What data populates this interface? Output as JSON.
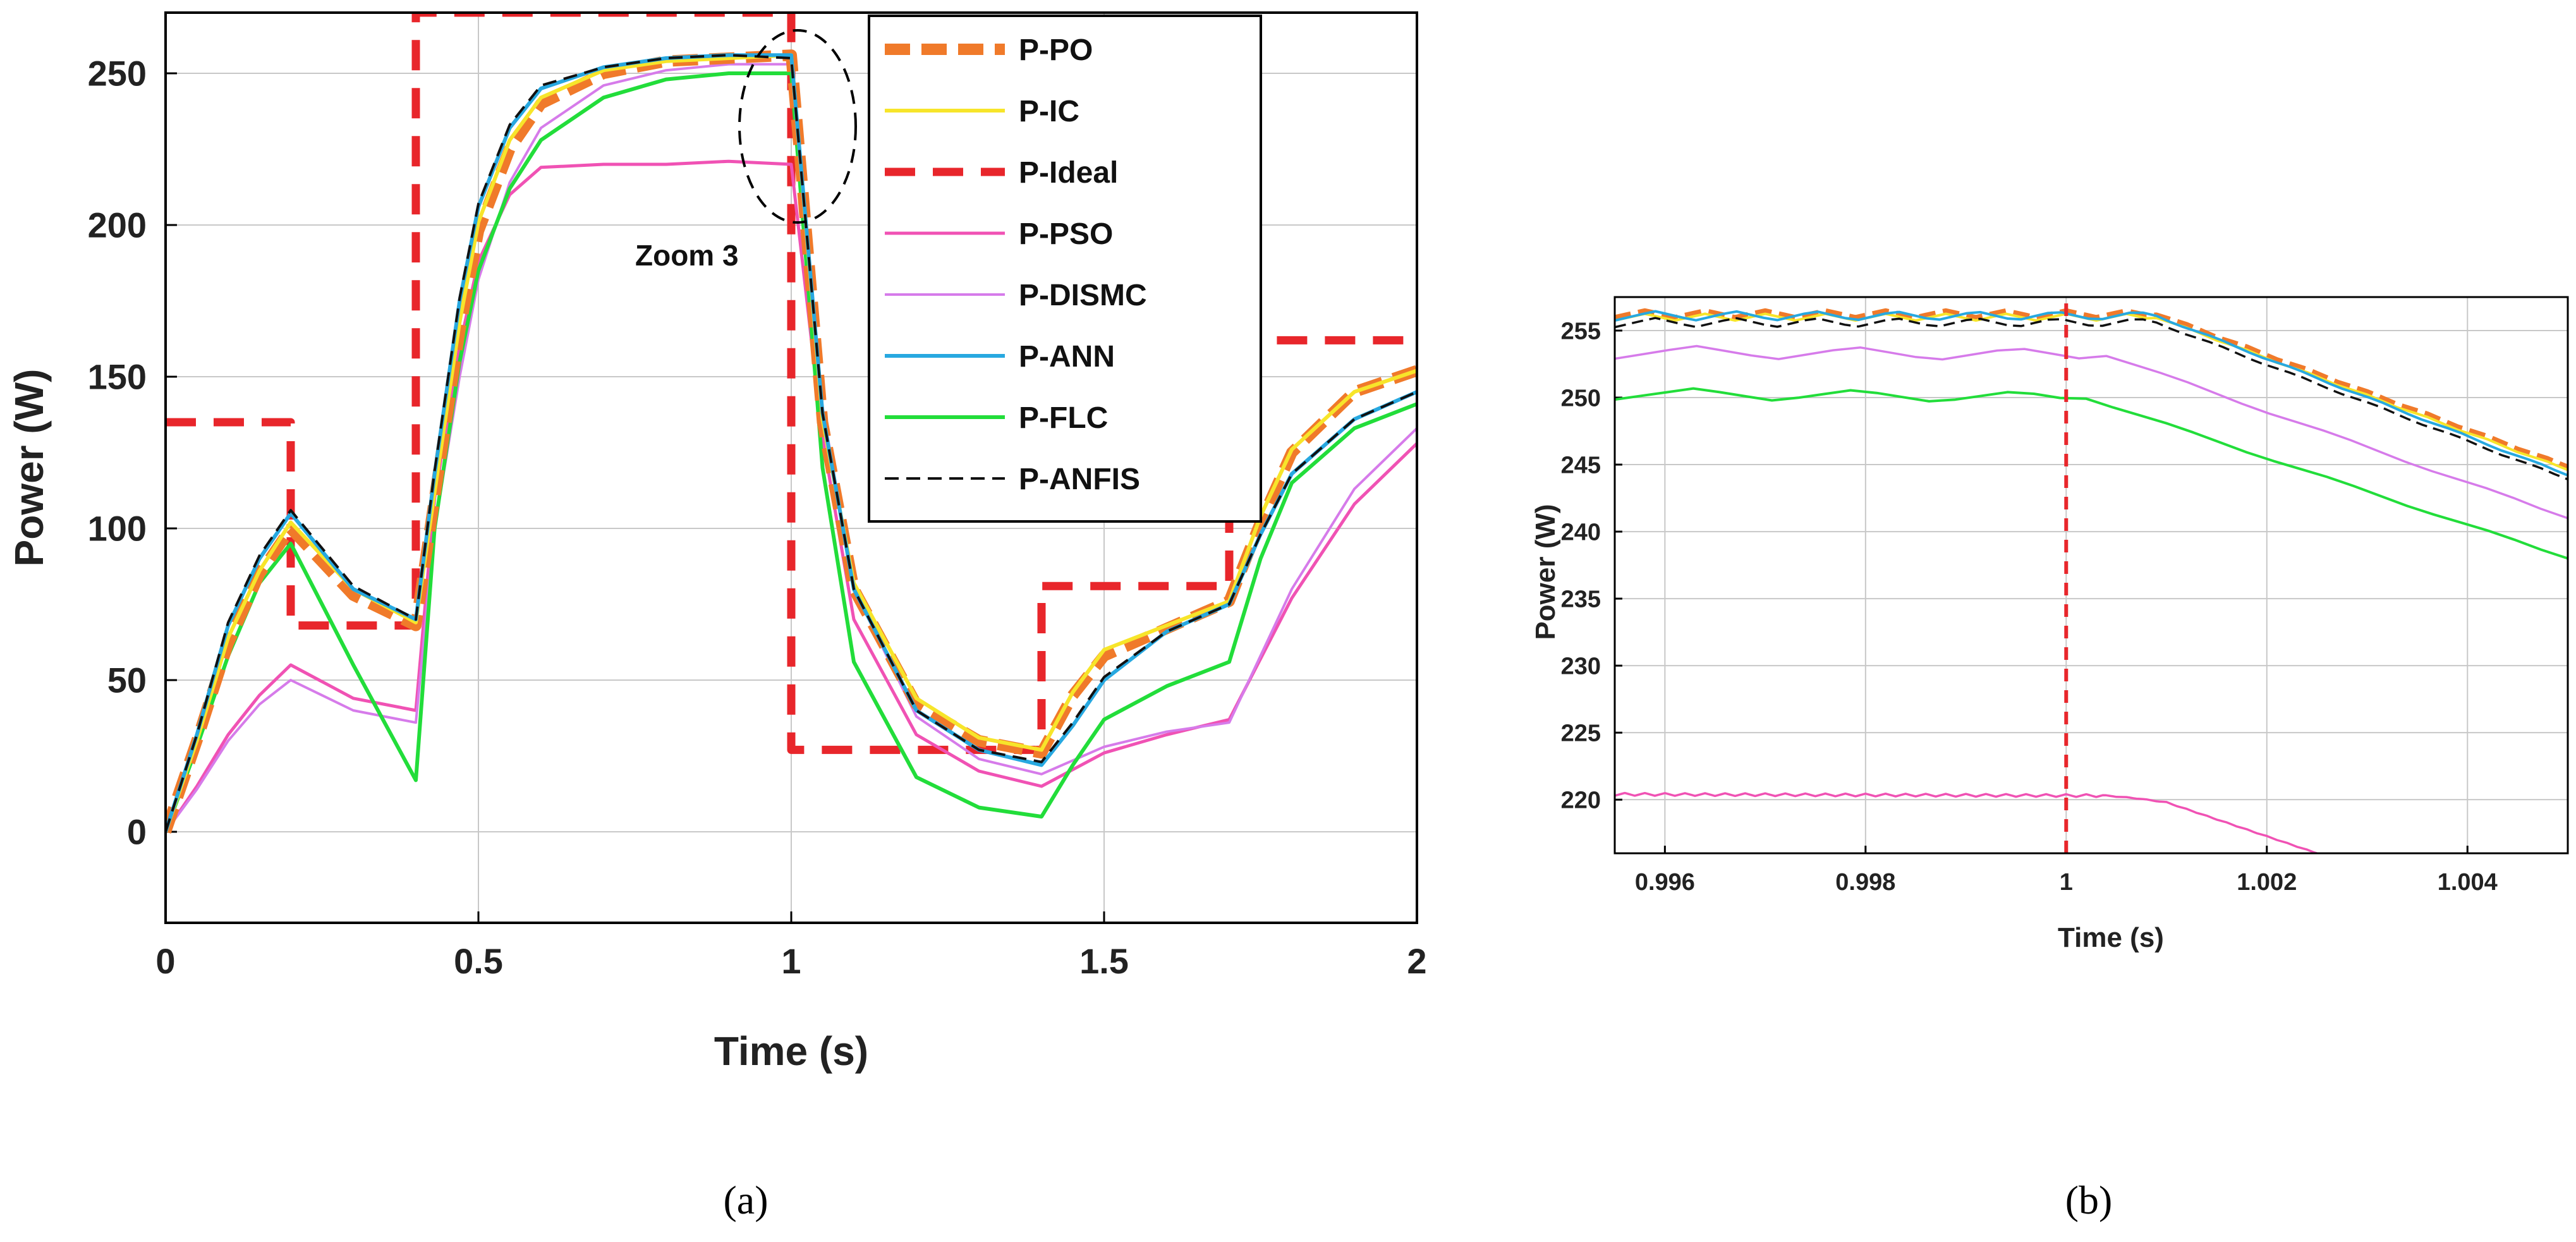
{
  "colors": {
    "P-PO": "#F07A2A",
    "P-IC": "#F7E52A",
    "P-Ideal": "#E8262B",
    "P-PSO": "#F052B4",
    "P-DISMC": "#D67BEA",
    "P-ANN": "#27A8E0",
    "P-FLC": "#22DD3A",
    "P-ANFIS": "#111111"
  },
  "chart_data": [
    {
      "type": "line",
      "panel": "a",
      "panel_label": "(a)",
      "xlabel": "Time (s)",
      "ylabel": "Power (W)",
      "xlim": [
        0,
        2
      ],
      "ylim": [
        -30,
        270
      ],
      "xticks": [
        0,
        0.5,
        1,
        1.5,
        2
      ],
      "xtick_labels": [
        "0",
        "0.5",
        "1",
        "1.5",
        "2"
      ],
      "yticks": [
        0,
        50,
        100,
        150,
        200,
        250
      ],
      "ytick_labels": [
        "0",
        "50",
        "100",
        "150",
        "200",
        "250"
      ],
      "grid": true,
      "legend_position": "top-right",
      "annotation": {
        "text": "Zoom 3",
        "x": 1.0,
        "y": 230
      },
      "series": [
        {
          "name": "P-Ideal",
          "x": [
            0,
            0.2,
            0.2,
            0.4,
            0.4,
            1.0,
            1.0,
            1.4,
            1.4,
            1.7,
            1.7,
            2.0
          ],
          "y": [
            135,
            135,
            68,
            68,
            270,
            270,
            27,
            27,
            81,
            81,
            162,
            162
          ]
        },
        {
          "name": "P-PSO",
          "x": [
            0,
            0.05,
            0.1,
            0.15,
            0.2,
            0.3,
            0.4,
            0.43,
            0.47,
            0.5,
            0.55,
            0.6,
            0.7,
            0.8,
            0.9,
            1.0,
            1.05,
            1.1,
            1.2,
            1.3,
            1.4,
            1.5,
            1.6,
            1.7,
            1.8,
            1.9,
            2.0
          ],
          "y": [
            0,
            15,
            32,
            45,
            55,
            44,
            40,
            110,
            160,
            188,
            210,
            219,
            220,
            220,
            221,
            220,
            130,
            70,
            32,
            20,
            15,
            26,
            32,
            37,
            77,
            108,
            128
          ]
        },
        {
          "name": "P-DISMC",
          "x": [
            0,
            0.05,
            0.1,
            0.15,
            0.2,
            0.3,
            0.4,
            0.43,
            0.47,
            0.5,
            0.55,
            0.6,
            0.7,
            0.8,
            0.9,
            1.0,
            1.05,
            1.1,
            1.2,
            1.3,
            1.4,
            1.5,
            1.6,
            1.7,
            1.8,
            1.9,
            2.0
          ],
          "y": [
            0,
            14,
            30,
            42,
            50,
            40,
            36,
            100,
            150,
            182,
            214,
            232,
            246,
            251,
            253,
            253,
            140,
            80,
            38,
            24,
            19,
            28,
            33,
            36,
            80,
            113,
            133
          ]
        },
        {
          "name": "P-FLC",
          "x": [
            0,
            0.05,
            0.1,
            0.15,
            0.2,
            0.3,
            0.4,
            0.43,
            0.47,
            0.5,
            0.55,
            0.6,
            0.7,
            0.8,
            0.9,
            1.0,
            1.05,
            1.1,
            1.2,
            1.3,
            1.4,
            1.45,
            1.5,
            1.6,
            1.7,
            1.75,
            1.8,
            1.9,
            2.0
          ],
          "y": [
            0,
            28,
            58,
            82,
            95,
            55,
            17,
            100,
            155,
            185,
            212,
            228,
            242,
            248,
            250,
            250,
            120,
            56,
            18,
            8,
            5,
            22,
            37,
            48,
            56,
            90,
            115,
            133,
            141
          ]
        },
        {
          "name": "P-PO",
          "x": [
            0,
            0.05,
            0.1,
            0.15,
            0.2,
            0.3,
            0.4,
            0.43,
            0.47,
            0.5,
            0.55,
            0.6,
            0.7,
            0.8,
            0.9,
            1.0,
            1.05,
            1.1,
            1.2,
            1.3,
            1.4,
            1.45,
            1.5,
            1.6,
            1.7,
            1.75,
            1.8,
            1.9,
            2.0
          ],
          "y": [
            0,
            30,
            62,
            85,
            100,
            78,
            68,
            110,
            165,
            198,
            225,
            240,
            250,
            254,
            255,
            256,
            135,
            80,
            42,
            30,
            26,
            45,
            58,
            67,
            76,
            102,
            125,
            145,
            152
          ]
        },
        {
          "name": "P-IC",
          "x": [
            0,
            0.05,
            0.1,
            0.15,
            0.2,
            0.3,
            0.4,
            0.43,
            0.47,
            0.5,
            0.55,
            0.6,
            0.7,
            0.8,
            0.9,
            1.0,
            1.05,
            1.1,
            1.2,
            1.3,
            1.4,
            1.45,
            1.5,
            1.6,
            1.7,
            1.75,
            1.8,
            1.9,
            2.0
          ],
          "y": [
            0,
            30,
            64,
            86,
            102,
            80,
            69,
            112,
            168,
            201,
            228,
            242,
            251,
            254,
            255,
            256,
            136,
            82,
            44,
            31,
            27,
            46,
            60,
            68,
            76,
            104,
            126,
            145,
            152
          ]
        },
        {
          "name": "P-ANN",
          "x": [
            0,
            0.05,
            0.1,
            0.15,
            0.2,
            0.3,
            0.4,
            0.43,
            0.47,
            0.5,
            0.55,
            0.6,
            0.7,
            0.8,
            0.9,
            1.0,
            1.05,
            1.1,
            1.2,
            1.3,
            1.4,
            1.45,
            1.5,
            1.6,
            1.7,
            1.75,
            1.8,
            1.9,
            2.0
          ],
          "y": [
            0,
            32,
            68,
            90,
            105,
            80,
            70,
            118,
            175,
            206,
            232,
            245,
            252,
            255,
            256,
            256,
            138,
            80,
            40,
            27,
            22,
            35,
            50,
            66,
            75,
            98,
            118,
            136,
            145
          ]
        },
        {
          "name": "P-ANFIS",
          "x": [
            0,
            0.05,
            0.1,
            0.15,
            0.2,
            0.3,
            0.4,
            0.43,
            0.47,
            0.5,
            0.55,
            0.6,
            0.7,
            0.8,
            0.9,
            1.0,
            1.05,
            1.1,
            1.2,
            1.3,
            1.4,
            1.45,
            1.5,
            1.6,
            1.7,
            1.75,
            1.8,
            1.9,
            2.0
          ],
          "y": [
            0,
            32,
            69,
            91,
            106,
            81,
            70,
            119,
            176,
            207,
            233,
            246,
            252,
            255,
            256,
            255,
            138,
            80,
            40,
            27,
            23,
            36,
            51,
            66,
            75,
            98,
            118,
            136,
            145
          ]
        }
      ]
    },
    {
      "type": "line",
      "panel": "b",
      "panel_label": "(b)",
      "xlabel": "Time (s)",
      "ylabel": "Power (W)",
      "xlim": [
        0.9955,
        1.005
      ],
      "ylim": [
        216,
        257.5
      ],
      "xticks": [
        0.996,
        0.998,
        1,
        1.002,
        1.004
      ],
      "xtick_labels": [
        "0.996",
        "0.998",
        "1",
        "1.002",
        "1.004"
      ],
      "yticks": [
        220,
        225,
        230,
        235,
        240,
        245,
        250,
        255
      ],
      "ytick_labels": [
        "220",
        "225",
        "230",
        "235",
        "240",
        "245",
        "250",
        "255"
      ],
      "grid": true,
      "series": [
        {
          "name": "P-PO",
          "x": [
            0.9955,
            1.0009,
            1.005
          ],
          "y": [
            256.2,
            256.2,
            244.8
          ],
          "ripple": 0.5,
          "ripple_period": 0.0006
        },
        {
          "name": "P-IC",
          "x": [
            0.9955,
            1.0009,
            1.005
          ],
          "y": [
            256.0,
            256.0,
            244.6
          ],
          "ripple": 0.5,
          "ripple_period": 0.0006
        },
        {
          "name": "P-ANN",
          "x": [
            0.9955,
            1.0009,
            1.005
          ],
          "y": [
            256.1,
            256.1,
            244.2
          ],
          "ripple": 0.7,
          "ripple_period": 0.0008
        },
        {
          "name": "P-ANFIS",
          "x": [
            0.9955,
            1.0009,
            1.005
          ],
          "y": [
            255.6,
            255.6,
            243.9
          ],
          "ripple": 0.7,
          "ripple_period": 0.0008
        },
        {
          "name": "P-DISMC",
          "x": [
            0.9955,
            1.0004,
            1.005
          ],
          "y": [
            253.4,
            253.2,
            241.0
          ],
          "ripple": 1.0,
          "ripple_period": 0.0016
        },
        {
          "name": "P-FLC",
          "x": [
            0.9955,
            1.0002,
            1.005
          ],
          "y": [
            250.3,
            250.0,
            238.0
          ],
          "ripple": 0.9,
          "ripple_period": 0.0016
        },
        {
          "name": "P-PSO",
          "x": [
            0.9955,
            1.0004,
            1.0007,
            1.001,
            1.0025
          ],
          "y": [
            220.4,
            220.3,
            220.1,
            219.8,
            216.0
          ],
          "ripple": 0.2,
          "ripple_period": 0.0002
        },
        {
          "name": "P-Ideal",
          "x": [
            1.0,
            1.0
          ],
          "y": [
            216,
            257.5
          ]
        }
      ]
    }
  ]
}
